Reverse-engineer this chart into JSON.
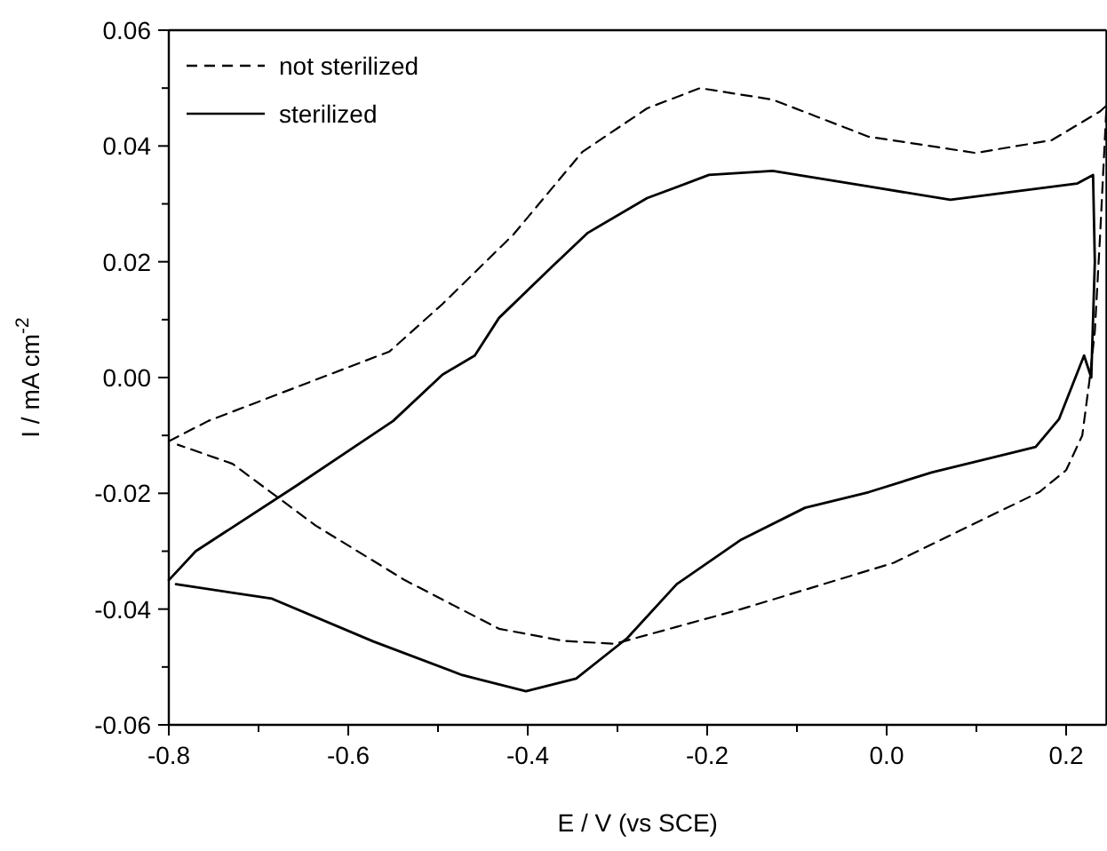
{
  "chart_data": {
    "type": "line",
    "xlabel": "E / V (vs SCE)",
    "ylabel": "I / mA cm$^{-2}$",
    "xlim": [
      -0.8,
      0.245
    ],
    "ylim": [
      -0.06,
      0.06
    ],
    "xticks": [
      {
        "value": -0.8,
        "label": "-0.8"
      },
      {
        "value": -0.7,
        "label": null
      },
      {
        "value": -0.6,
        "label": "-0.6"
      },
      {
        "value": -0.5,
        "label": null
      },
      {
        "value": -0.4,
        "label": "-0.4"
      },
      {
        "value": -0.3,
        "label": null
      },
      {
        "value": -0.2,
        "label": "-0.2"
      },
      {
        "value": -0.1,
        "label": null
      },
      {
        "value": 0,
        "label": "0.0"
      },
      {
        "value": 0.1,
        "label": null
      },
      {
        "value": 0.2,
        "label": "0.2"
      }
    ],
    "yticks": [
      {
        "value": -0.06,
        "label": "-0.06"
      },
      {
        "value": -0.05,
        "label": null
      },
      {
        "value": -0.04,
        "label": "-0.04"
      },
      {
        "value": -0.03,
        "label": null
      },
      {
        "value": -0.02,
        "label": "-0.02"
      },
      {
        "value": -0.01,
        "label": null
      },
      {
        "value": 0,
        "label": "0.00"
      },
      {
        "value": 0.01,
        "label": null
      },
      {
        "value": 0.02,
        "label": "0.02"
      },
      {
        "value": 0.03,
        "label": null
      },
      {
        "value": 0.04,
        "label": "0.04"
      },
      {
        "value": 0.05,
        "label": null
      },
      {
        "value": 0.06,
        "label": "0.06"
      }
    ],
    "grid": false,
    "legend": "top left",
    "marker": "none",
    "series": [
      {
        "name": "not sterilized",
        "color": "#000000",
        "line_style": "dashed",
        "x": [
          -0.8,
          -0.756,
          -0.554,
          -0.495,
          -0.416,
          -0.339,
          -0.267,
          -0.208,
          -0.127,
          -0.02,
          0.099,
          0.184,
          0.238,
          0.245,
          0.238,
          0.232,
          0.226,
          0.218,
          0.2,
          0.17,
          0.008,
          -0.162,
          -0.303,
          -0.36,
          -0.432,
          -0.537,
          -0.636,
          -0.729,
          -0.79
        ],
        "values": [
          -0.011,
          -0.0075,
          0.0045,
          0.0127,
          0.0247,
          0.039,
          0.0465,
          0.05,
          0.048,
          0.0416,
          0.0388,
          0.041,
          0.046,
          0.047,
          0.025,
          0.008,
          -0.0005,
          -0.01,
          -0.016,
          -0.0198,
          -0.032,
          -0.04,
          -0.046,
          -0.0455,
          -0.0434,
          -0.035,
          -0.0256,
          -0.0149,
          -0.0116
        ]
      },
      {
        "name": "sterilized",
        "color": "#000000",
        "line_style": "solid",
        "x": [
          -0.8,
          -0.77,
          -0.657,
          -0.55,
          -0.495,
          -0.459,
          -0.432,
          -0.374,
          -0.333,
          -0.267,
          -0.198,
          -0.127,
          -0.02,
          0.071,
          0.212,
          0.23,
          0.232,
          0.228,
          0.22,
          0.192,
          0.166,
          0.05,
          -0.02,
          -0.091,
          -0.162,
          -0.234,
          -0.289,
          -0.346,
          -0.402,
          -0.473,
          -0.572,
          -0.685,
          -0.792
        ],
        "values": [
          -0.035,
          -0.03,
          -0.0186,
          -0.0075,
          0.0005,
          0.0038,
          0.0103,
          0.019,
          0.025,
          0.031,
          0.035,
          0.0357,
          0.033,
          0.0307,
          0.0335,
          0.035,
          0.02,
          0.0,
          0.0038,
          -0.0072,
          -0.012,
          -0.0164,
          -0.0198,
          -0.0225,
          -0.028,
          -0.0357,
          -0.045,
          -0.052,
          -0.0542,
          -0.0514,
          -0.0456,
          -0.0382,
          -0.0357
        ]
      }
    ]
  }
}
